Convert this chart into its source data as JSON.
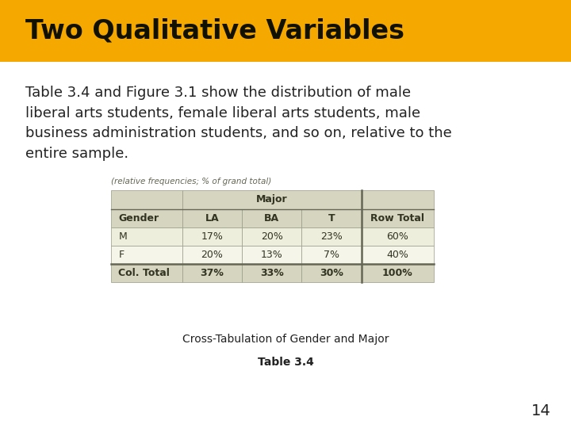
{
  "title": "Two Qualitative Variables",
  "title_bg_color": "#F5A800",
  "title_text_color": "#111100",
  "body_text": "Table 3.4 and Figure 3.1 show the distribution of male\nliberal arts students, female liberal arts students, male\nbusiness administration students, and so on, relative to the\nentire sample.",
  "body_text_color": "#222222",
  "bg_color": "#FFFFFF",
  "subtitle_note": "(relative frequencies; % of grand total)",
  "table_caption": "Cross-Tabulation of Gender and Major",
  "table_label": "Table 3.4",
  "page_number": "14",
  "table": {
    "row0": [
      "",
      "Major",
      "",
      "",
      ""
    ],
    "row1": [
      "Gender",
      "LA",
      "BA",
      "T",
      "Row Total"
    ],
    "row2": [
      "M",
      "17%",
      "20%",
      "23%",
      "60%"
    ],
    "row3": [
      "F",
      "20%",
      "13%",
      "7%",
      "40%"
    ],
    "row4": [
      "Col. Total",
      "37%",
      "33%",
      "30%",
      "100%"
    ],
    "header_bg": "#D5D5C0",
    "row_bg_m": "#EEEEDD",
    "row_bg_f": "#F5F5EA",
    "total_bg": "#D5D5C0",
    "cell_text_color": "#333322",
    "border_color": "#999988"
  }
}
